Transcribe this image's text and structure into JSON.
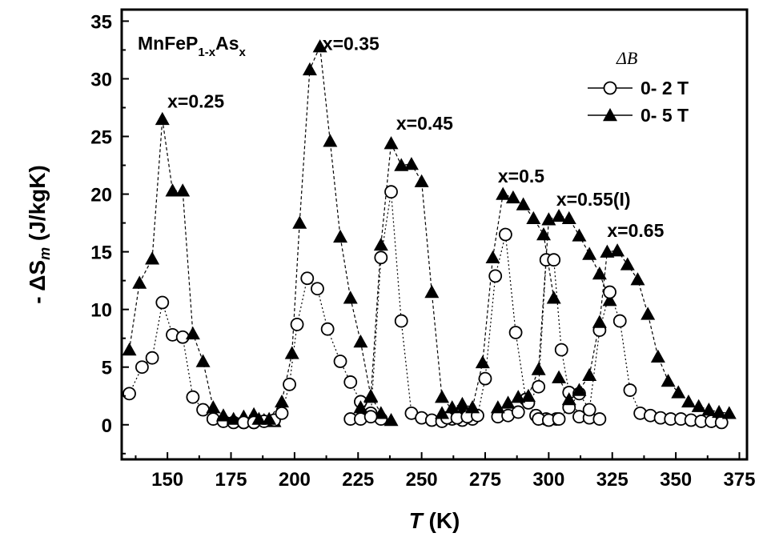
{
  "chart_data": {
    "type": "scatter",
    "xlabel_var": "T",
    "xlabel_unit": " (K)",
    "ylabel_prefix": "- ΔS",
    "ylabel_sub": "m",
    "ylabel_unit": " (J/kgK)",
    "xlim": [
      132,
      378
    ],
    "ylim": [
      -3,
      36
    ],
    "xticks": [
      150,
      175,
      200,
      225,
      250,
      275,
      300,
      325,
      350,
      375
    ],
    "yticks": [
      0,
      5,
      10,
      15,
      20,
      25,
      30,
      35
    ],
    "formula": {
      "base": "MnFeP",
      "sub1": "1-x",
      "mid": "As",
      "sub2": "x"
    },
    "legend": {
      "title": "ΔB",
      "position": "top-right",
      "entries": [
        {
          "label": "0- 2 T",
          "marker": "circle-open"
        },
        {
          "label": "0- 5 T",
          "marker": "triangle-filled"
        }
      ]
    },
    "annotations": [
      {
        "text": "x=0.25",
        "x": 150,
        "y": 27.5
      },
      {
        "text": "x=0.35",
        "x": 211,
        "y": 32.5
      },
      {
        "text": "x=0.45",
        "x": 240,
        "y": 25.6
      },
      {
        "text": "x=0.5",
        "x": 280,
        "y": 21.0
      },
      {
        "text": "x=0.55(I)",
        "x": 303,
        "y": 19.0
      },
      {
        "text": "x=0.65",
        "x": 323,
        "y": 16.3
      }
    ],
    "series": [
      {
        "field": "0- 2 T",
        "composition": "x=0.25",
        "marker": "circle",
        "x": [
          135,
          140,
          144,
          148,
          152,
          156,
          160,
          164,
          168,
          172,
          176,
          180,
          184
        ],
        "y": [
          2.7,
          5.0,
          5.8,
          10.6,
          7.8,
          7.6,
          2.4,
          1.3,
          0.5,
          0.3,
          0.2,
          0.2,
          0.2
        ]
      },
      {
        "field": "0- 5 T",
        "composition": "x=0.25",
        "marker": "triangle",
        "x": [
          135,
          139,
          144,
          148,
          152,
          156,
          160,
          164,
          168,
          172,
          176,
          180,
          184,
          188,
          192
        ],
        "y": [
          6.5,
          12.3,
          14.4,
          26.5,
          20.3,
          20.3,
          7.9,
          5.5,
          1.5,
          0.8,
          0.5,
          0.7,
          0.9,
          0.4,
          0.3
        ]
      },
      {
        "field": "0- 2 T",
        "composition": "x=0.35",
        "marker": "circle",
        "x": [
          180,
          184,
          188,
          192,
          195,
          198,
          201,
          205,
          209,
          213,
          218,
          222,
          226,
          230,
          234
        ],
        "y": [
          0.2,
          0.2,
          0.3,
          0.4,
          1.0,
          3.5,
          8.7,
          12.7,
          11.8,
          8.3,
          5.5,
          3.7,
          2.0,
          1.0,
          0.5
        ]
      },
      {
        "field": "0- 5 T",
        "composition": "x=0.35",
        "marker": "triangle",
        "x": [
          186,
          190,
          195,
          199,
          202,
          206,
          210,
          214,
          218,
          222,
          226,
          230,
          234,
          238
        ],
        "y": [
          0.5,
          0.5,
          2.0,
          6.2,
          17.5,
          30.8,
          32.8,
          24.6,
          16.3,
          11.0,
          7.2,
          2.5,
          1.0,
          0.4
        ]
      },
      {
        "field": "0- 2 T",
        "composition": "x=0.45",
        "marker": "circle",
        "x": [
          222,
          226,
          230,
          234,
          238,
          242,
          246,
          250,
          254,
          258,
          262,
          266,
          270
        ],
        "y": [
          0.5,
          0.5,
          0.7,
          14.5,
          20.2,
          9.0,
          1.0,
          0.6,
          0.4,
          0.3,
          0.5,
          0.4,
          0.5
        ]
      },
      {
        "field": "0- 5 T",
        "composition": "x=0.45",
        "marker": "triangle",
        "x": [
          226,
          230,
          234,
          238,
          242,
          246,
          250,
          254,
          258,
          262,
          266,
          270
        ],
        "y": [
          1.5,
          2.4,
          15.6,
          24.4,
          22.5,
          22.6,
          21.1,
          11.5,
          2.4,
          1.3,
          1.2,
          1.5
        ]
      },
      {
        "field": "0- 2 T",
        "composition": "x=0.5",
        "marker": "circle",
        "x": [
          260,
          264,
          268,
          272,
          275,
          279,
          283,
          287,
          291,
          295,
          299,
          303
        ],
        "y": [
          0.6,
          0.6,
          0.7,
          0.8,
          4.0,
          12.9,
          16.5,
          8.0,
          2.2,
          0.8,
          0.5,
          0.5
        ]
      },
      {
        "field": "0- 5 T",
        "composition": "x=0.5",
        "marker": "triangle",
        "x": [
          258,
          262,
          266,
          270,
          274,
          278,
          282,
          286,
          290,
          294,
          298,
          302
        ],
        "y": [
          1.0,
          1.5,
          1.8,
          1.5,
          5.4,
          14.5,
          20.0,
          19.7,
          19.1,
          17.9,
          16.5,
          11.0
        ]
      },
      {
        "field": "0- 2 T",
        "composition": "x=0.55(I)",
        "marker": "circle",
        "x": [
          280,
          284,
          288,
          292,
          296,
          299,
          302,
          305,
          308,
          312,
          316,
          320
        ],
        "y": [
          0.7,
          0.8,
          1.1,
          1.9,
          3.3,
          14.3,
          14.3,
          6.5,
          2.8,
          0.7,
          0.6,
          0.5
        ]
      },
      {
        "field": "0- 5 T",
        "composition": "x=0.55(I)",
        "marker": "triangle",
        "x": [
          280,
          284,
          288,
          292,
          296,
          300,
          304,
          308,
          312,
          316,
          320,
          324
        ],
        "y": [
          1.5,
          1.9,
          2.4,
          2.5,
          4.8,
          17.8,
          18.1,
          17.9,
          16.4,
          14.8,
          13.1,
          10.8
        ]
      },
      {
        "field": "0- 2 T",
        "composition": "x=0.65",
        "marker": "circle",
        "x": [
          296,
          300,
          304,
          308,
          312,
          316,
          320,
          324,
          328,
          332,
          336,
          340,
          344,
          348,
          352,
          356,
          360,
          364,
          368
        ],
        "y": [
          0.5,
          0.4,
          0.5,
          1.5,
          2.7,
          1.3,
          8.2,
          11.5,
          9.0,
          3.0,
          1.0,
          0.8,
          0.6,
          0.5,
          0.5,
          0.4,
          0.3,
          0.3,
          0.2
        ]
      },
      {
        "field": "0- 5 T",
        "composition": "x=0.65",
        "marker": "triangle",
        "x": [
          304,
          308,
          312,
          316,
          320,
          323,
          327,
          331,
          335,
          339,
          343,
          347,
          351,
          355,
          359,
          363,
          367,
          371
        ],
        "y": [
          4.1,
          2.2,
          3.0,
          4.3,
          8.9,
          15.0,
          15.1,
          13.9,
          12.6,
          9.6,
          5.9,
          3.8,
          2.8,
          2.0,
          1.6,
          1.3,
          1.1,
          1.0
        ]
      }
    ]
  }
}
